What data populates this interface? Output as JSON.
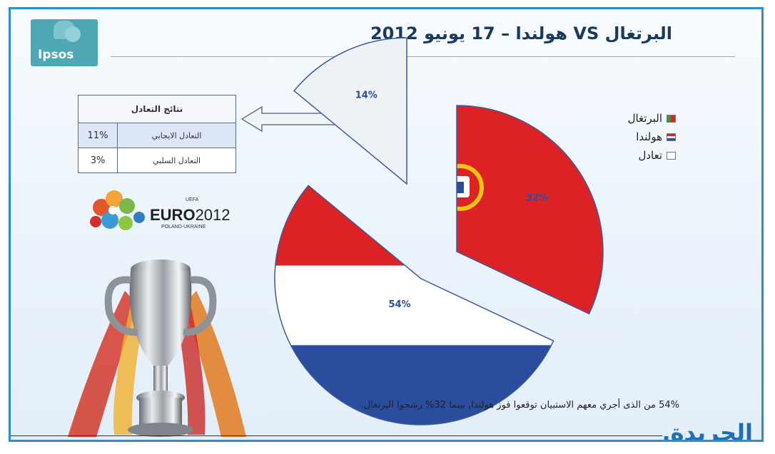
{
  "logo": {
    "text": "Ipsos"
  },
  "header": {
    "title": "البرتغال VS هولندا – 17 يونيو 2012"
  },
  "results_table": {
    "title": "نتائج التعادل",
    "rows": [
      {
        "label": "التعادل الايجابي",
        "value": "11%"
      },
      {
        "label": "التعادل السلبي",
        "value": "3%"
      }
    ]
  },
  "euro_logo": {
    "brand": "EURO",
    "year": "2012",
    "subtitle": "POLAND-UKRAINE",
    "uefa": "UEFA"
  },
  "caption": "54% من الذى أجري معهم الاستبيان توقعوا فوز هولندا, بينما 32% رشحوا البرتغال.",
  "footer_brand": "الجريدة",
  "colors": {
    "portugal_green": "#2e9a3f",
    "portugal_red": "#dd2226",
    "nl_red": "#dd2226",
    "nl_white": "#ffffff",
    "nl_blue": "#2a4d9e",
    "draw": "#eef1f5",
    "frame": "#2a8fd0"
  },
  "chart_data": {
    "type": "pie",
    "title": "البرتغال VS هولندا – 17 يونيو 2012",
    "slices": [
      {
        "name": "البرتغال",
        "value": 32,
        "label": "32%",
        "color": "#dd2226",
        "pattern": "portugal-flag"
      },
      {
        "name": "هولندا",
        "value": 54,
        "label": "54%",
        "color": "#2a4d9e",
        "pattern": "netherlands-flag"
      },
      {
        "name": "تعادل",
        "value": 14,
        "label": "14%",
        "color": "#eef1f5",
        "pattern": "none"
      }
    ],
    "legend": {
      "placement": "top-right",
      "items": [
        "البرتغال",
        "هولندا",
        "تعادل"
      ]
    },
    "exploded": true
  }
}
